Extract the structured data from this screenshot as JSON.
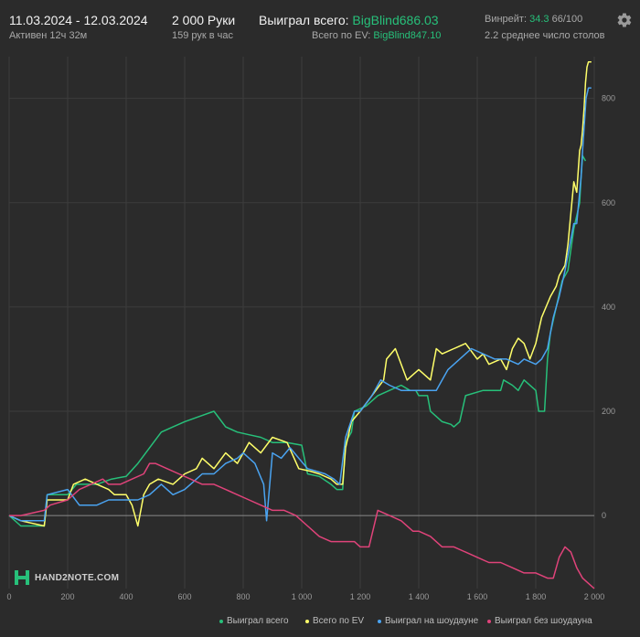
{
  "header": {
    "date_range": "11.03.2024 - 12.03.2024",
    "active_time": "Активен 12ч 32м",
    "hands": "2 000 Руки",
    "hands_per_hour": "159 рук в час",
    "won_total_label": "Выиграл всего:",
    "won_total_value": "BigBlind686.03",
    "ev_total_label": "Всего по EV:",
    "ev_total_value": "BigBlind847.10",
    "winrate_label": "Винрейт:",
    "winrate_value": "34.3",
    "winrate_unit": "66/100",
    "avg_tables": "2.2 среднее число столов",
    "settings_icon": "gear-icon"
  },
  "watermark": {
    "text": "HAND2NOTE.COM",
    "logo_icon": "hand2note-logo-icon"
  },
  "colors": {
    "background": "#2b2b2b",
    "won_total": "#27c07a",
    "ev_total": "#ffff6a",
    "showdown": "#4aa3f0",
    "non_showdown": "#e0437a",
    "accent_green": "#27c07a"
  },
  "chart_data": {
    "type": "line",
    "xlabel": "",
    "ylabel": "",
    "xlim": [
      0,
      2000
    ],
    "ylim": [
      -140,
      880
    ],
    "x_ticks": [
      0,
      200,
      400,
      600,
      800,
      1000,
      1200,
      1400,
      1600,
      1800,
      2000
    ],
    "x_tick_labels": [
      "0",
      "200",
      "400",
      "600",
      "800",
      "1 000",
      "1 200",
      "1 400",
      "1 600",
      "1 800",
      "2 000"
    ],
    "y_ticks": [
      0,
      200,
      400,
      600,
      800
    ],
    "y_tick_labels": [
      "0",
      "200",
      "400",
      "600",
      "800"
    ],
    "grid": true,
    "legend_position": "bottom",
    "series": [
      {
        "name": "Выиграл всего",
        "color": "#27c07a",
        "points": [
          [
            0,
            0
          ],
          [
            40,
            -20
          ],
          [
            120,
            -20
          ],
          [
            130,
            40
          ],
          [
            200,
            40
          ],
          [
            230,
            60
          ],
          [
            300,
            60
          ],
          [
            350,
            70
          ],
          [
            400,
            75
          ],
          [
            440,
            100
          ],
          [
            480,
            130
          ],
          [
            520,
            160
          ],
          [
            560,
            170
          ],
          [
            600,
            180
          ],
          [
            650,
            190
          ],
          [
            700,
            200
          ],
          [
            740,
            170
          ],
          [
            780,
            160
          ],
          [
            820,
            155
          ],
          [
            860,
            150
          ],
          [
            900,
            140
          ],
          [
            950,
            140
          ],
          [
            1000,
            135
          ],
          [
            1020,
            80
          ],
          [
            1060,
            75
          ],
          [
            1100,
            60
          ],
          [
            1120,
            50
          ],
          [
            1140,
            50
          ],
          [
            1150,
            140
          ],
          [
            1170,
            160
          ],
          [
            1180,
            200
          ],
          [
            1220,
            210
          ],
          [
            1260,
            230
          ],
          [
            1300,
            240
          ],
          [
            1340,
            250
          ],
          [
            1370,
            240
          ],
          [
            1390,
            240
          ],
          [
            1400,
            230
          ],
          [
            1430,
            230
          ],
          [
            1440,
            200
          ],
          [
            1460,
            190
          ],
          [
            1480,
            180
          ],
          [
            1510,
            175
          ],
          [
            1520,
            170
          ],
          [
            1540,
            180
          ],
          [
            1560,
            230
          ],
          [
            1620,
            240
          ],
          [
            1680,
            240
          ],
          [
            1690,
            260
          ],
          [
            1720,
            250
          ],
          [
            1740,
            240
          ],
          [
            1760,
            260
          ],
          [
            1800,
            240
          ],
          [
            1810,
            200
          ],
          [
            1830,
            200
          ],
          [
            1840,
            300
          ],
          [
            1850,
            350
          ],
          [
            1870,
            400
          ],
          [
            1890,
            450
          ],
          [
            1910,
            470
          ],
          [
            1930,
            550
          ],
          [
            1950,
            600
          ],
          [
            1955,
            650
          ],
          [
            1960,
            690
          ],
          [
            1970,
            680
          ]
        ]
      },
      {
        "name": "Всего по EV",
        "color": "#ffff6a",
        "points": [
          [
            0,
            0
          ],
          [
            40,
            -10
          ],
          [
            120,
            -20
          ],
          [
            130,
            30
          ],
          [
            200,
            30
          ],
          [
            220,
            60
          ],
          [
            260,
            70
          ],
          [
            300,
            60
          ],
          [
            340,
            50
          ],
          [
            360,
            40
          ],
          [
            400,
            40
          ],
          [
            420,
            20
          ],
          [
            440,
            -20
          ],
          [
            460,
            40
          ],
          [
            480,
            60
          ],
          [
            510,
            70
          ],
          [
            560,
            60
          ],
          [
            600,
            80
          ],
          [
            640,
            90
          ],
          [
            660,
            110
          ],
          [
            700,
            90
          ],
          [
            740,
            120
          ],
          [
            780,
            100
          ],
          [
            820,
            140
          ],
          [
            860,
            120
          ],
          [
            900,
            150
          ],
          [
            950,
            140
          ],
          [
            990,
            90
          ],
          [
            1030,
            85
          ],
          [
            1060,
            80
          ],
          [
            1100,
            70
          ],
          [
            1120,
            60
          ],
          [
            1140,
            60
          ],
          [
            1150,
            130
          ],
          [
            1170,
            180
          ],
          [
            1200,
            200
          ],
          [
            1240,
            230
          ],
          [
            1280,
            260
          ],
          [
            1290,
            300
          ],
          [
            1320,
            320
          ],
          [
            1340,
            290
          ],
          [
            1360,
            260
          ],
          [
            1380,
            270
          ],
          [
            1400,
            280
          ],
          [
            1440,
            260
          ],
          [
            1460,
            320
          ],
          [
            1480,
            310
          ],
          [
            1520,
            320
          ],
          [
            1560,
            330
          ],
          [
            1600,
            300
          ],
          [
            1620,
            310
          ],
          [
            1640,
            290
          ],
          [
            1680,
            300
          ],
          [
            1700,
            280
          ],
          [
            1720,
            320
          ],
          [
            1740,
            340
          ],
          [
            1760,
            330
          ],
          [
            1780,
            300
          ],
          [
            1800,
            330
          ],
          [
            1820,
            380
          ],
          [
            1850,
            420
          ],
          [
            1870,
            440
          ],
          [
            1880,
            460
          ],
          [
            1900,
            480
          ],
          [
            1910,
            520
          ],
          [
            1930,
            640
          ],
          [
            1940,
            620
          ],
          [
            1950,
            700
          ],
          [
            1955,
            710
          ],
          [
            1960,
            740
          ],
          [
            1965,
            780
          ],
          [
            1970,
            830
          ],
          [
            1975,
            860
          ],
          [
            1980,
            870
          ],
          [
            1990,
            870
          ]
        ]
      },
      {
        "name": "Выиграл на шоудауне",
        "color": "#4aa3f0",
        "points": [
          [
            0,
            0
          ],
          [
            40,
            -10
          ],
          [
            120,
            -10
          ],
          [
            130,
            40
          ],
          [
            200,
            50
          ],
          [
            240,
            20
          ],
          [
            300,
            20
          ],
          [
            340,
            30
          ],
          [
            400,
            30
          ],
          [
            440,
            30
          ],
          [
            480,
            40
          ],
          [
            520,
            60
          ],
          [
            560,
            40
          ],
          [
            600,
            50
          ],
          [
            620,
            60
          ],
          [
            660,
            80
          ],
          [
            700,
            80
          ],
          [
            740,
            100
          ],
          [
            780,
            110
          ],
          [
            800,
            120
          ],
          [
            840,
            100
          ],
          [
            870,
            60
          ],
          [
            880,
            -10
          ],
          [
            900,
            120
          ],
          [
            930,
            110
          ],
          [
            960,
            130
          ],
          [
            990,
            110
          ],
          [
            1020,
            90
          ],
          [
            1050,
            85
          ],
          [
            1080,
            80
          ],
          [
            1110,
            70
          ],
          [
            1130,
            60
          ],
          [
            1150,
            150
          ],
          [
            1180,
            200
          ],
          [
            1200,
            200
          ],
          [
            1240,
            230
          ],
          [
            1270,
            260
          ],
          [
            1300,
            250
          ],
          [
            1340,
            240
          ],
          [
            1380,
            240
          ],
          [
            1420,
            240
          ],
          [
            1460,
            240
          ],
          [
            1480,
            260
          ],
          [
            1500,
            280
          ],
          [
            1540,
            300
          ],
          [
            1580,
            320
          ],
          [
            1620,
            310
          ],
          [
            1660,
            300
          ],
          [
            1700,
            300
          ],
          [
            1740,
            290
          ],
          [
            1760,
            300
          ],
          [
            1800,
            290
          ],
          [
            1820,
            300
          ],
          [
            1840,
            320
          ],
          [
            1860,
            380
          ],
          [
            1880,
            420
          ],
          [
            1900,
            470
          ],
          [
            1920,
            530
          ],
          [
            1930,
            560
          ],
          [
            1940,
            560
          ],
          [
            1950,
            620
          ],
          [
            1955,
            650
          ],
          [
            1960,
            700
          ],
          [
            1966,
            750
          ],
          [
            1972,
            800
          ],
          [
            1980,
            820
          ],
          [
            1990,
            820
          ]
        ]
      },
      {
        "name": "Выиграл без шоудауна",
        "color": "#e0437a",
        "points": [
          [
            0,
            0
          ],
          [
            40,
            0
          ],
          [
            120,
            10
          ],
          [
            140,
            20
          ],
          [
            200,
            30
          ],
          [
            240,
            50
          ],
          [
            280,
            60
          ],
          [
            320,
            70
          ],
          [
            340,
            60
          ],
          [
            380,
            60
          ],
          [
            420,
            70
          ],
          [
            460,
            80
          ],
          [
            480,
            100
          ],
          [
            500,
            100
          ],
          [
            540,
            90
          ],
          [
            580,
            80
          ],
          [
            620,
            70
          ],
          [
            660,
            60
          ],
          [
            700,
            60
          ],
          [
            740,
            50
          ],
          [
            780,
            40
          ],
          [
            820,
            30
          ],
          [
            860,
            20
          ],
          [
            900,
            10
          ],
          [
            940,
            10
          ],
          [
            980,
            0
          ],
          [
            1020,
            -20
          ],
          [
            1040,
            -30
          ],
          [
            1060,
            -40
          ],
          [
            1100,
            -50
          ],
          [
            1140,
            -50
          ],
          [
            1180,
            -50
          ],
          [
            1200,
            -60
          ],
          [
            1230,
            -60
          ],
          [
            1260,
            10
          ],
          [
            1300,
            0
          ],
          [
            1340,
            -10
          ],
          [
            1380,
            -30
          ],
          [
            1400,
            -30
          ],
          [
            1440,
            -40
          ],
          [
            1480,
            -60
          ],
          [
            1520,
            -60
          ],
          [
            1560,
            -70
          ],
          [
            1600,
            -80
          ],
          [
            1640,
            -90
          ],
          [
            1680,
            -90
          ],
          [
            1720,
            -100
          ],
          [
            1760,
            -110
          ],
          [
            1800,
            -110
          ],
          [
            1840,
            -120
          ],
          [
            1860,
            -120
          ],
          [
            1880,
            -80
          ],
          [
            1900,
            -60
          ],
          [
            1920,
            -70
          ],
          [
            1940,
            -100
          ],
          [
            1960,
            -120
          ],
          [
            1980,
            -130
          ],
          [
            2000,
            -140
          ]
        ]
      }
    ]
  }
}
